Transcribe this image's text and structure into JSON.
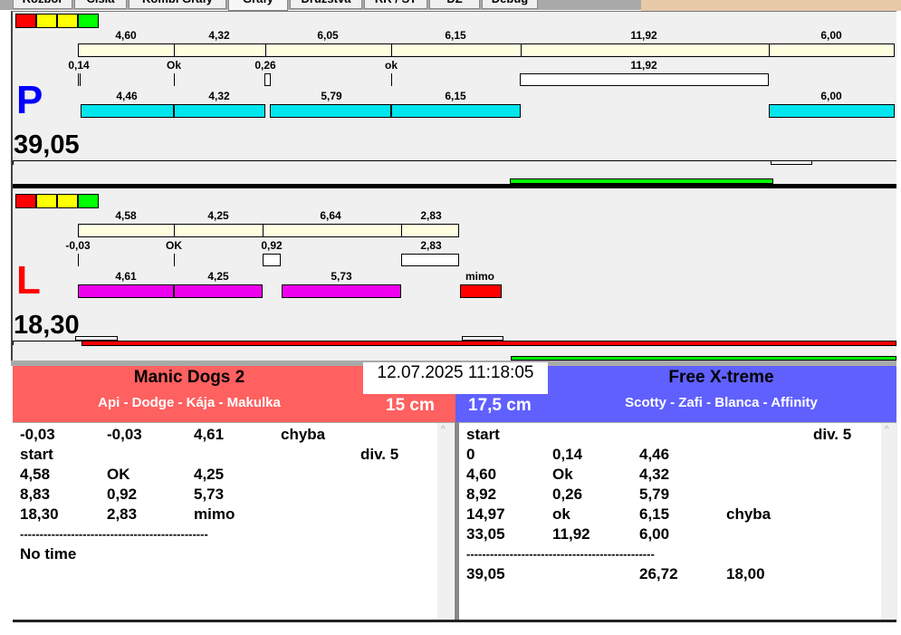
{
  "tabs": [
    "Rozbor",
    "Čísla",
    "Kombi Grafy",
    "Grafy",
    "Družstva",
    "RR / ST",
    "DZ",
    "Debug"
  ],
  "active_tab": "Grafy",
  "colors": {
    "red": "#ff0000",
    "yellow": "#ffff00",
    "green": "#00ff00",
    "cream": "#ffffe0",
    "cyan": "#00e5ee",
    "magenta": "#ee00ee",
    "p_letter": "#0000ff",
    "l_letter": "#ff0000",
    "left_header": "#ff6060",
    "right_header": "#6060ff"
  },
  "p": {
    "letter": "P",
    "total": "39,05",
    "row1": [
      "4,60",
      "4,32",
      "6,05",
      "6,15",
      "11,92",
      "6,00"
    ],
    "row2": [
      "0,14",
      "Ok",
      "0,26",
      "ok",
      "11,92"
    ],
    "row3": [
      "4,46",
      "4,32",
      "5,79",
      "6,15",
      "6,00"
    ]
  },
  "l": {
    "letter": "L",
    "total": "18,30",
    "row1": [
      "4,58",
      "4,25",
      "6,64",
      "2,83"
    ],
    "row2": [
      "-0,03",
      "OK",
      "0,92",
      "2,83"
    ],
    "row3": [
      "4,61",
      "4,25",
      "5,73",
      "mimo"
    ]
  },
  "datetime": "12.07.2025 11:18:05",
  "left_team": {
    "name": "Manic Dogs 2",
    "dogs": "Api - Dodge - Kája - Makulka",
    "height": "15 cm",
    "rows": [
      [
        "-0,03",
        "-0,03",
        "4,61",
        "chyba",
        ""
      ],
      [
        "start",
        "",
        "",
        "",
        "div.  5"
      ],
      [
        "4,58",
        "OK",
        "4,25",
        "",
        ""
      ],
      [
        "8,83",
        "0,92",
        "5,73",
        "",
        ""
      ],
      [
        "18,30",
        "2,83",
        "mimo",
        "",
        ""
      ],
      [
        "------------------------------------------------"
      ],
      [
        "No time"
      ]
    ]
  },
  "right_team": {
    "name": "Free X-treme",
    "dogs": "Scotty - Zafi - Blanca - Affinity",
    "height": "17,5 cm",
    "rows": [
      [
        "start",
        "",
        "",
        "",
        "div.  5"
      ],
      [
        "0",
        "0,14",
        "4,46",
        "",
        ""
      ],
      [
        "4,60",
        "Ok",
        "4,32",
        "",
        ""
      ],
      [
        "8,92",
        "0,26",
        "5,79",
        "",
        ""
      ],
      [
        "14,97",
        "ok",
        "6,15",
        "chyba",
        ""
      ],
      [
        "33,05",
        "11,92",
        "6,00",
        "",
        ""
      ],
      [
        "------------------------------------------------"
      ],
      [
        "39,05",
        "",
        "26,72",
        "18,00",
        ""
      ]
    ]
  }
}
